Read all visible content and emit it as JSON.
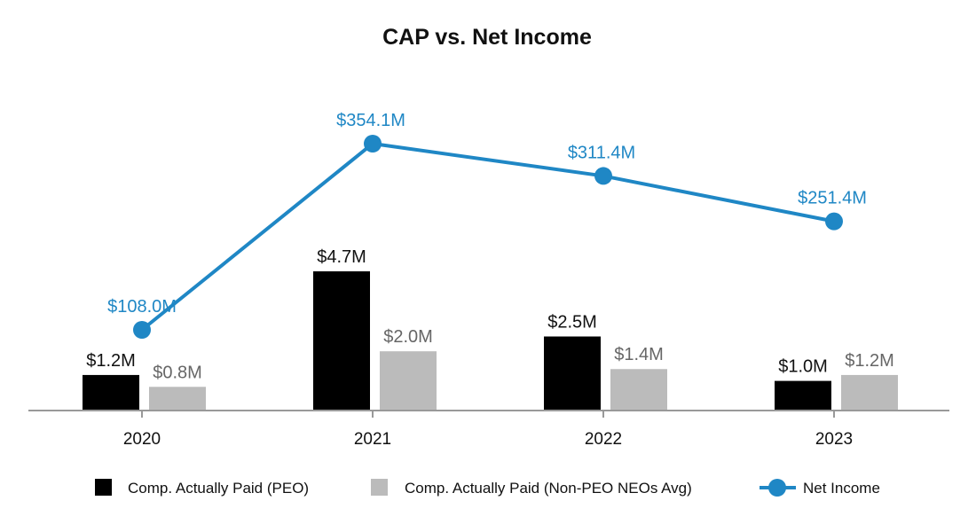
{
  "chart_data": {
    "type": "bar",
    "title": "CAP vs. Net Income",
    "categories": [
      "2020",
      "2021",
      "2022",
      "2023"
    ],
    "series": [
      {
        "name": "Comp. Actually Paid (PEO)",
        "kind": "bar",
        "axis": "left",
        "color": "#000000",
        "values": [
          1.2,
          4.7,
          2.5,
          1.0
        ],
        "labels": [
          "$1.2M",
          "$4.7M",
          "$2.5M",
          "$1.0M"
        ]
      },
      {
        "name": "Comp. Actually Paid (Non-PEO NEOs Avg)",
        "kind": "bar",
        "axis": "left",
        "color": "#bbbbbb",
        "values": [
          0.8,
          2.0,
          1.4,
          1.2
        ],
        "labels": [
          "$0.8M",
          "$2.0M",
          "$1.4M",
          "$1.2M"
        ]
      },
      {
        "name": "Net Income",
        "kind": "line",
        "axis": "right",
        "color": "#1f87c5",
        "values": [
          108.0,
          354.1,
          311.4,
          251.4
        ],
        "labels": [
          "$108.0M",
          "$354.1M",
          "$311.4M",
          "$251.4M"
        ]
      }
    ],
    "xlabel": "",
    "ylabel": "",
    "ylim": [
      0,
      5.5
    ],
    "y2lim": [
      -30,
      380
    ],
    "grid": false,
    "legend": "bottom"
  }
}
